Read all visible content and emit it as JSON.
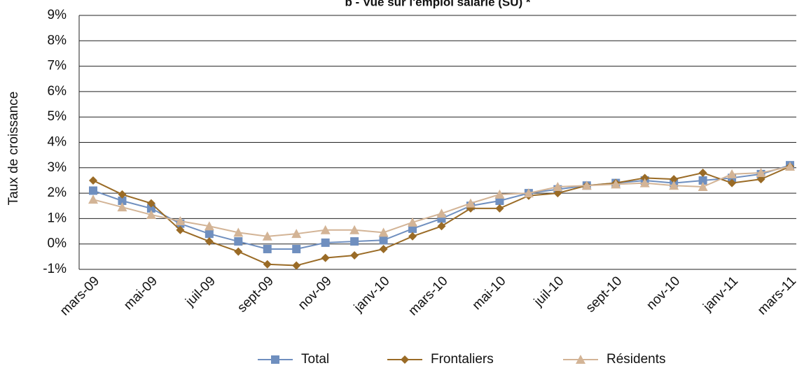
{
  "chart_data": {
    "type": "line",
    "title": "b - Vue sur l'emploi salarié (SU) *",
    "y_label": "Taux de croissance",
    "categories": [
      "mars-09",
      null,
      "mai-09",
      null,
      "juil-09",
      null,
      "sept-09",
      null,
      "nov-09",
      null,
      "janv-10",
      null,
      "mars-10",
      null,
      "mai-10",
      null,
      "juil-10",
      null,
      "sept-10",
      null,
      "nov-10",
      null,
      "janv-11",
      null,
      "mars-11"
    ],
    "series": [
      {
        "name": "Total",
        "color": "#6f8fbf",
        "marker": "square",
        "values": [
          2.1,
          1.7,
          1.4,
          0.8,
          0.4,
          0.1,
          -0.2,
          -0.2,
          0.05,
          0.1,
          0.15,
          0.6,
          1.0,
          1.5,
          1.7,
          2.0,
          2.15,
          2.3,
          2.4,
          2.5,
          2.4,
          2.5,
          2.6,
          2.75,
          3.1
        ]
      },
      {
        "name": "Frontaliers",
        "color": "#9a6b26",
        "marker": "diamond",
        "values": [
          2.5,
          1.95,
          1.6,
          0.55,
          0.1,
          -0.3,
          -0.8,
          -0.85,
          -0.55,
          -0.45,
          -0.2,
          0.3,
          0.7,
          1.4,
          1.4,
          1.9,
          2.0,
          2.3,
          2.4,
          2.6,
          2.55,
          2.8,
          2.4,
          2.55,
          3.05
        ]
      },
      {
        "name": "Résidents",
        "color": "#d3b496",
        "marker": "triangle",
        "values": [
          1.75,
          1.45,
          1.15,
          0.9,
          0.7,
          0.45,
          0.3,
          0.4,
          0.55,
          0.55,
          0.45,
          0.85,
          1.2,
          1.6,
          1.95,
          2.0,
          2.25,
          2.3,
          2.35,
          2.4,
          2.3,
          2.25,
          2.75,
          2.8,
          3.05
        ]
      }
    ],
    "ylim": [
      -1,
      9
    ],
    "yticks": [
      {
        "value": -1,
        "label": "-1%"
      },
      {
        "value": 0,
        "label": "0%"
      },
      {
        "value": 1,
        "label": "1%"
      },
      {
        "value": 2,
        "label": "2%"
      },
      {
        "value": 3,
        "label": "3%"
      },
      {
        "value": 4,
        "label": "4%"
      },
      {
        "value": 5,
        "label": "5%"
      },
      {
        "value": 6,
        "label": "6%"
      },
      {
        "value": 7,
        "label": "7%"
      },
      {
        "value": 8,
        "label": "8%"
      },
      {
        "value": 9,
        "label": "9%"
      }
    ],
    "grid": true,
    "legend": "bottom"
  }
}
